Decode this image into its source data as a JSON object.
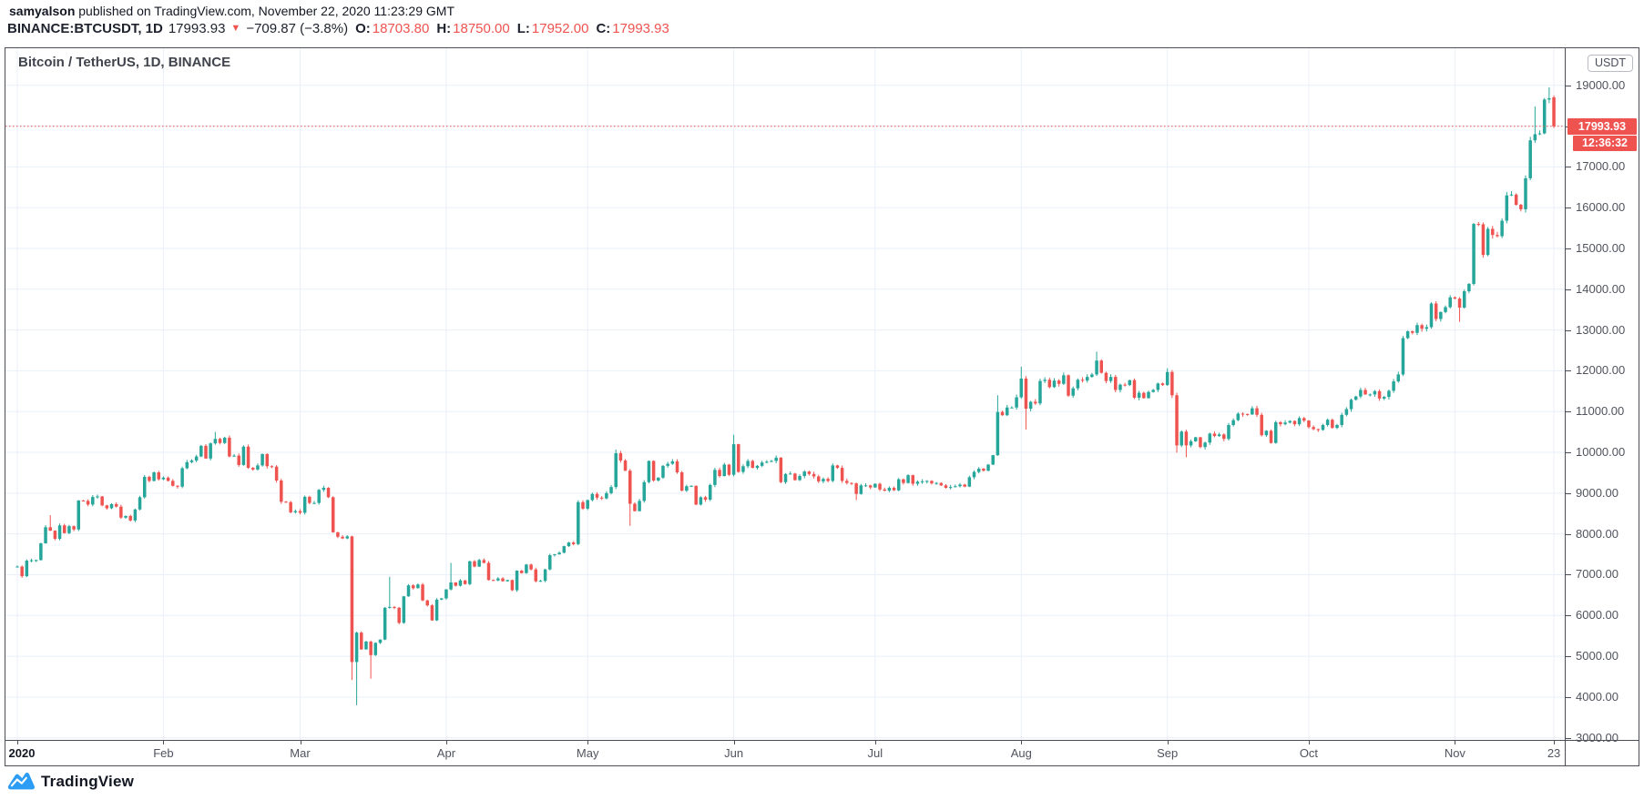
{
  "header": {
    "byline": {
      "author": "samyalson",
      "text": " published on TradingView.com, November 22, 2020 11:23:29 GMT"
    },
    "symbol_line": {
      "symbol_interval": "BINANCE:BTCUSDT, 1D",
      "last_price": "17993.93",
      "direction_glyph": "▼",
      "change": "−709.87 (−3.8%)",
      "ohlc": {
        "o_label": "O:",
        "o": "18703.80",
        "h_label": "H:",
        "h": "18750.00",
        "l_label": "L:",
        "l": "17952.00",
        "c_label": "C:",
        "c": "17993.93"
      }
    }
  },
  "chart": {
    "title": "Bitcoin / TetherUS, 1D, BINANCE",
    "currency_badge": "USDT",
    "price_label": "17993.93",
    "countdown": "12:36:32",
    "logo_text": "TradingView"
  },
  "colors": {
    "up": "#26a69a",
    "down": "#ef5350",
    "grid": "#eaeff9",
    "frame": "#4b4e57",
    "axis_text": "#50535e",
    "dark_text": "#131722",
    "logo_blue": "#2d9cf4"
  },
  "chart_data": {
    "type": "candlestick",
    "symbol": "BINANCE:BTCUSDT",
    "interval": "1D",
    "title": "Bitcoin / TetherUS, 1D, BINANCE",
    "start_date": "2020-01-01",
    "end_date": "2020-11-22",
    "currency": "USDT",
    "current_price": 17993.93,
    "last_bar": {
      "open": 18703.8,
      "high": 18750.0,
      "low": 17952.0,
      "close": 17993.93
    },
    "first_open": 7195,
    "ylim": [
      2950,
      19908
    ],
    "y_ticks": [
      19000,
      18000,
      17000,
      16000,
      15000,
      14000,
      13000,
      12000,
      11000,
      10000,
      9000,
      8000,
      7000,
      6000,
      5000,
      4000,
      3000
    ],
    "x_ticks": [
      {
        "label": "2020",
        "day": 0,
        "year": true
      },
      {
        "label": "Feb",
        "day": 31
      },
      {
        "label": "Mar",
        "day": 60
      },
      {
        "label": "Apr",
        "day": 91
      },
      {
        "label": "May",
        "day": 121
      },
      {
        "label": "Jun",
        "day": 152
      },
      {
        "label": "Jul",
        "day": 182
      },
      {
        "label": "Aug",
        "day": 213
      },
      {
        "label": "Sep",
        "day": 244
      },
      {
        "label": "Oct",
        "day": 274
      },
      {
        "label": "Nov",
        "day": 305
      },
      {
        "label": "23",
        "day": 326
      }
    ],
    "daily_closes": [
      7200,
      6965,
      7345,
      7355,
      7360,
      7770,
      8165,
      8080,
      7880,
      8210,
      8020,
      8190,
      8110,
      8820,
      8810,
      8720,
      8905,
      8920,
      8700,
      8630,
      8730,
      8670,
      8400,
      8440,
      8330,
      8600,
      8900,
      9400,
      9300,
      9510,
      9340,
      9380,
      9300,
      9180,
      9160,
      9610,
      9760,
      9800,
      9900,
      10160,
      9850,
      10220,
      10330,
      10230,
      10360,
      9900,
      9920,
      9690,
      10140,
      9620,
      9580,
      9680,
      9960,
      9660,
      9650,
      9310,
      8790,
      8780,
      8530,
      8560,
      8520,
      8910,
      8760,
      8760,
      9080,
      9130,
      8900,
      8040,
      7930,
      7890,
      7940,
      4860,
      5580,
      5170,
      5360,
      5030,
      5330,
      5410,
      6190,
      6210,
      6190,
      5820,
      6470,
      6740,
      6670,
      6760,
      6370,
      6250,
      5880,
      6390,
      6420,
      6640,
      6810,
      6730,
      6860,
      6770,
      7330,
      7200,
      7360,
      7290,
      6870,
      6860,
      6910,
      6840,
      6870,
      6620,
      7100,
      7040,
      7250,
      7130,
      6840,
      6850,
      7130,
      7480,
      7500,
      7540,
      7700,
      7790,
      7750,
      8780,
      8620,
      8830,
      8980,
      8890,
      8870,
      9000,
      9150,
      9980,
      9800,
      9550,
      8740,
      8560,
      8810,
      9270,
      9790,
      9310,
      9380,
      9670,
      9720,
      9780,
      9510,
      9060,
      9170,
      9180,
      8720,
      8900,
      8840,
      9200,
      9570,
      9420,
      9700,
      9450,
      10200,
      9520,
      9660,
      9790,
      9620,
      9670,
      9750,
      9770,
      9790,
      9870,
      9270,
      9470,
      9480,
      9320,
      9420,
      9530,
      9470,
      9410,
      9290,
      9350,
      9300,
      9680,
      9620,
      9300,
      9250,
      9240,
      8980,
      9190,
      9190,
      9140,
      9230,
      9090,
      9060,
      9130,
      9070,
      9340,
      9250,
      9440,
      9230,
      9280,
      9290,
      9300,
      9240,
      9250,
      9190,
      9130,
      9150,
      9170,
      9210,
      9160,
      9390,
      9520,
      9600,
      9550,
      9700,
      9930,
      10990,
      10910,
      11100,
      11100,
      11350,
      11810,
      11070,
      11240,
      11200,
      11750,
      11780,
      11600,
      11760,
      11680,
      11890,
      11390,
      11570,
      11780,
      11760,
      11850,
      11910,
      12250,
      11950,
      11750,
      11850,
      11530,
      11660,
      11650,
      11770,
      11340,
      11460,
      11330,
      11480,
      11530,
      11690,
      11650,
      11970,
      11400,
      10170,
      10510,
      10170,
      10270,
      10370,
      10130,
      10240,
      10460,
      10400,
      10440,
      10330,
      10670,
      10790,
      10950,
      10940,
      10930,
      11080,
      10920,
      10420,
      10530,
      10230,
      10740,
      10690,
      10730,
      10770,
      10690,
      10840,
      10780,
      10620,
      10570,
      10550,
      10670,
      10800,
      10600,
      10670,
      10920,
      11060,
      11290,
      11370,
      11530,
      11420,
      11420,
      11500,
      11320,
      11360,
      11510,
      11740,
      11910,
      12800,
      12970,
      12930,
      13120,
      13030,
      13070,
      13650,
      13270,
      13440,
      13560,
      13800,
      13770,
      13550,
      13950,
      14130,
      15600,
      15590,
      14840,
      15480,
      15330,
      15300,
      15680,
      16300,
      16320,
      16070,
      15960,
      16720,
      17650,
      17800,
      17820,
      18650,
      18680,
      17993.93
    ],
    "wick_overrides": {
      "7": {
        "high": 8460
      },
      "42": {
        "high": 10500
      },
      "71": {
        "low": 4420
      },
      "72": {
        "low": 3800
      },
      "75": {
        "low": 4450
      },
      "79": {
        "high": 6950
      },
      "92": {
        "high": 7290
      },
      "127": {
        "high": 10070
      },
      "130": {
        "low": 8200
      },
      "152": {
        "high": 10430
      },
      "178": {
        "low": 8830
      },
      "208": {
        "high": 11400
      },
      "213": {
        "high": 12100
      },
      "214": {
        "low": 10560
      },
      "229": {
        "high": 12470
      },
      "244": {
        "high": 12060
      },
      "246": {
        "low": 9990
      },
      "248": {
        "low": 9880
      },
      "306": {
        "low": 13200
      },
      "322": {
        "high": 18480
      },
      "325": {
        "high": 18950
      }
    }
  }
}
